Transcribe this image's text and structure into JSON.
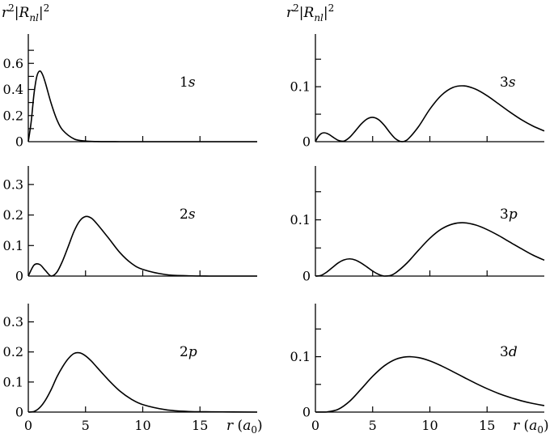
{
  "chart_data": {
    "type": "line",
    "left_ylabel": "r²|R_nl|²",
    "right_ylabel": "r²|R_nl|²",
    "xlabel": "r (a₀)",
    "xlim": [
      0,
      20
    ],
    "xticks": [
      0,
      5,
      10,
      15
    ],
    "xtick_labels": [
      "0",
      "5",
      "10",
      "15"
    ],
    "panels": [
      {
        "id": "1s",
        "label": "1s",
        "column": "left",
        "row": 0,
        "ylim": [
          0,
          0.8
        ],
        "yticks": [
          0,
          0.1,
          0.2,
          0.3,
          0.4,
          0.5,
          0.6,
          0.7
        ],
        "ytick_labels": [
          "0",
          "",
          "0.2",
          "",
          "0.4",
          "",
          "0.6",
          ""
        ],
        "x": [
          0,
          0.25,
          0.5,
          0.75,
          1,
          1.25,
          1.5,
          2,
          2.5,
          3,
          4,
          5,
          6,
          8,
          10,
          15,
          20
        ],
        "y": [
          0,
          0.152,
          0.368,
          0.502,
          0.541,
          0.513,
          0.448,
          0.293,
          0.168,
          0.089,
          0.021,
          0.005,
          0.001,
          0,
          0,
          0,
          0
        ]
      },
      {
        "id": "2s",
        "label": "2s",
        "column": "left",
        "row": 1,
        "ylim": [
          0,
          0.35
        ],
        "yticks": [
          0,
          0.1,
          0.2,
          0.3
        ],
        "ytick_labels": [
          "0",
          "0.1",
          "0.2",
          "0.3"
        ],
        "x": [
          0,
          0.5,
          1,
          1.5,
          2,
          2.5,
          3,
          3.5,
          4,
          4.5,
          5,
          5.5,
          6,
          7,
          8,
          9,
          10,
          12,
          14,
          16,
          20
        ],
        "y": [
          0,
          0.036,
          0.038,
          0.018,
          0,
          0.013,
          0.05,
          0.098,
          0.147,
          0.181,
          0.195,
          0.19,
          0.171,
          0.125,
          0.077,
          0.042,
          0.022,
          0.005,
          0.001,
          0,
          0
        ]
      },
      {
        "id": "2p",
        "label": "2p",
        "column": "left",
        "row": 2,
        "ylim": [
          0,
          0.35
        ],
        "yticks": [
          0,
          0.1,
          0.2,
          0.3
        ],
        "ytick_labels": [
          "0",
          "0.1",
          "0.2",
          "0.3"
        ],
        "x": [
          0,
          0.5,
          1,
          1.5,
          2,
          2.5,
          3,
          3.5,
          4,
          4.5,
          5,
          5.5,
          6,
          7,
          8,
          9,
          10,
          12,
          14,
          16,
          20
        ],
        "y": [
          0,
          0.002,
          0.015,
          0.04,
          0.075,
          0.117,
          0.151,
          0.178,
          0.195,
          0.197,
          0.187,
          0.17,
          0.149,
          0.107,
          0.07,
          0.043,
          0.025,
          0.008,
          0.002,
          0.001,
          0
        ]
      },
      {
        "id": "3s",
        "label": "3s",
        "column": "right",
        "row": 0,
        "ylim": [
          0,
          0.19
        ],
        "yticks": [
          0,
          0.05,
          0.1,
          0.15
        ],
        "ytick_labels": [
          "0",
          "",
          "0.1",
          ""
        ],
        "x": [
          0,
          0.25,
          0.5,
          0.75,
          1,
          1.25,
          1.5,
          2,
          2.5,
          3,
          3.5,
          4,
          4.5,
          5,
          5.5,
          6,
          6.5,
          7,
          7.5,
          8,
          9,
          10,
          11,
          12,
          13,
          14,
          15,
          16,
          17,
          18,
          19,
          20
        ],
        "y": [
          0,
          0.0094,
          0.0147,
          0.0162,
          0.0151,
          0.0124,
          0.0088,
          0.0024,
          0.0011,
          0.0081,
          0.0198,
          0.0321,
          0.0412,
          0.0443,
          0.0404,
          0.0303,
          0.0168,
          0.0053,
          0.0002,
          0.003,
          0.0271,
          0.0592,
          0.0842,
          0.0985,
          0.1015,
          0.0955,
          0.0837,
          0.0689,
          0.0538,
          0.04,
          0.0285,
          0.0195
        ]
      },
      {
        "id": "3p",
        "label": "3p",
        "column": "right",
        "row": 1,
        "ylim": [
          0,
          0.19
        ],
        "yticks": [
          0,
          0.05,
          0.1,
          0.15
        ],
        "ytick_labels": [
          "0",
          "",
          "0.1",
          ""
        ],
        "x": [
          0,
          0.5,
          1,
          1.5,
          2,
          2.5,
          3,
          3.5,
          4,
          4.5,
          5,
          5.5,
          6,
          6.5,
          7,
          8,
          9,
          10,
          11,
          12,
          13,
          14,
          15,
          16,
          17,
          18,
          19,
          20
        ],
        "y": [
          0,
          0.0013,
          0.0072,
          0.0155,
          0.0235,
          0.0288,
          0.0306,
          0.0285,
          0.0232,
          0.0163,
          0.009,
          0.0032,
          0,
          0.0008,
          0.0056,
          0.0232,
          0.0458,
          0.0672,
          0.0835,
          0.0926,
          0.0948,
          0.0908,
          0.0827,
          0.0722,
          0.0603,
          0.0486,
          0.0374,
          0.0282
        ]
      },
      {
        "id": "3d",
        "label": "3d",
        "column": "right",
        "row": 2,
        "ylim": [
          0,
          0.19
        ],
        "yticks": [
          0,
          0.05,
          0.1,
          0.15
        ],
        "ytick_labels": [
          "0",
          "",
          "0.1",
          ""
        ],
        "x": [
          0,
          1,
          2,
          3,
          4,
          5,
          6,
          7,
          8,
          9,
          10,
          11,
          12,
          13,
          14,
          15,
          16,
          17,
          18,
          19,
          20
        ],
        "y": [
          0,
          0.0003,
          0.0051,
          0.0197,
          0.0417,
          0.0645,
          0.0832,
          0.0952,
          0.0998,
          0.0984,
          0.0925,
          0.0836,
          0.0732,
          0.0625,
          0.052,
          0.0423,
          0.0337,
          0.0265,
          0.0204,
          0.0155,
          0.0117
        ]
      }
    ]
  }
}
